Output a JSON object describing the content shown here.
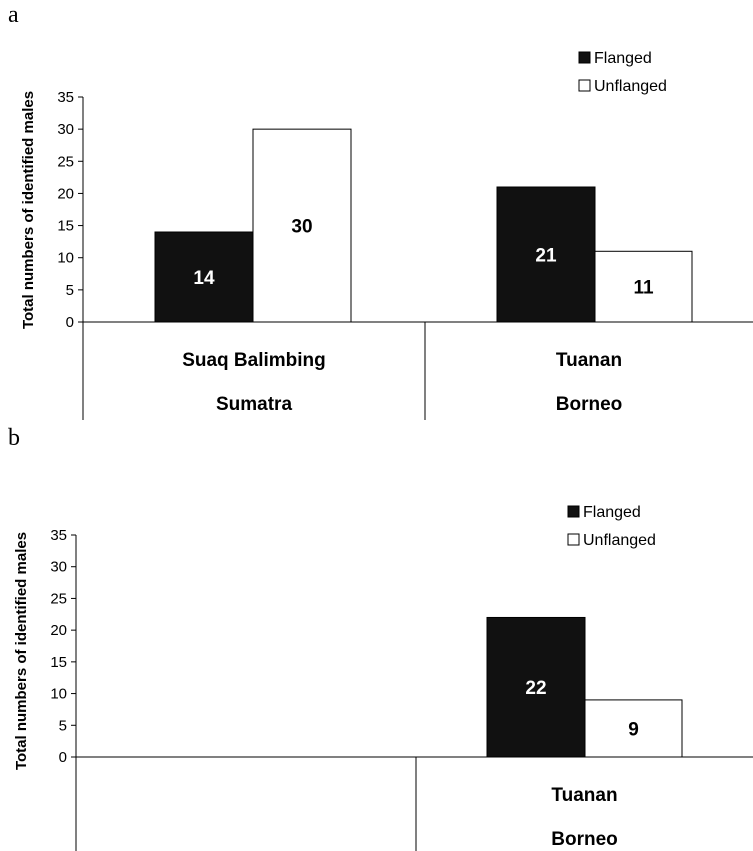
{
  "chart_data": [
    {
      "panel": "a",
      "type": "bar",
      "ylabel": "Total numbers of identified males",
      "ylim": [
        0,
        35
      ],
      "ytick_step": 5,
      "legend": {
        "position": "top-right",
        "entries": [
          "Flanged",
          "Unflanged"
        ]
      },
      "categories": [
        {
          "site": "Suaq Balimbing",
          "island": "Sumatra"
        },
        {
          "site": "Tuanan",
          "island": "Borneo"
        }
      ],
      "series": [
        {
          "name": "Flanged",
          "color": "#111111",
          "values": [
            14,
            21
          ]
        },
        {
          "name": "Unflanged",
          "color": "#ffffff",
          "values": [
            30,
            11
          ]
        }
      ]
    },
    {
      "panel": "b",
      "type": "bar",
      "ylabel": "Total numbers of identified males",
      "ylim": [
        0,
        35
      ],
      "ytick_step": 5,
      "legend": {
        "position": "top-right",
        "entries": [
          "Flanged",
          "Unflanged"
        ]
      },
      "categories": [
        {
          "site": "",
          "island": ""
        },
        {
          "site": "Tuanan",
          "island": "Borneo"
        }
      ],
      "series": [
        {
          "name": "Flanged",
          "color": "#111111",
          "values": [
            null,
            22
          ]
        },
        {
          "name": "Unflanged",
          "color": "#ffffff",
          "values": [
            null,
            9
          ]
        }
      ]
    }
  ]
}
